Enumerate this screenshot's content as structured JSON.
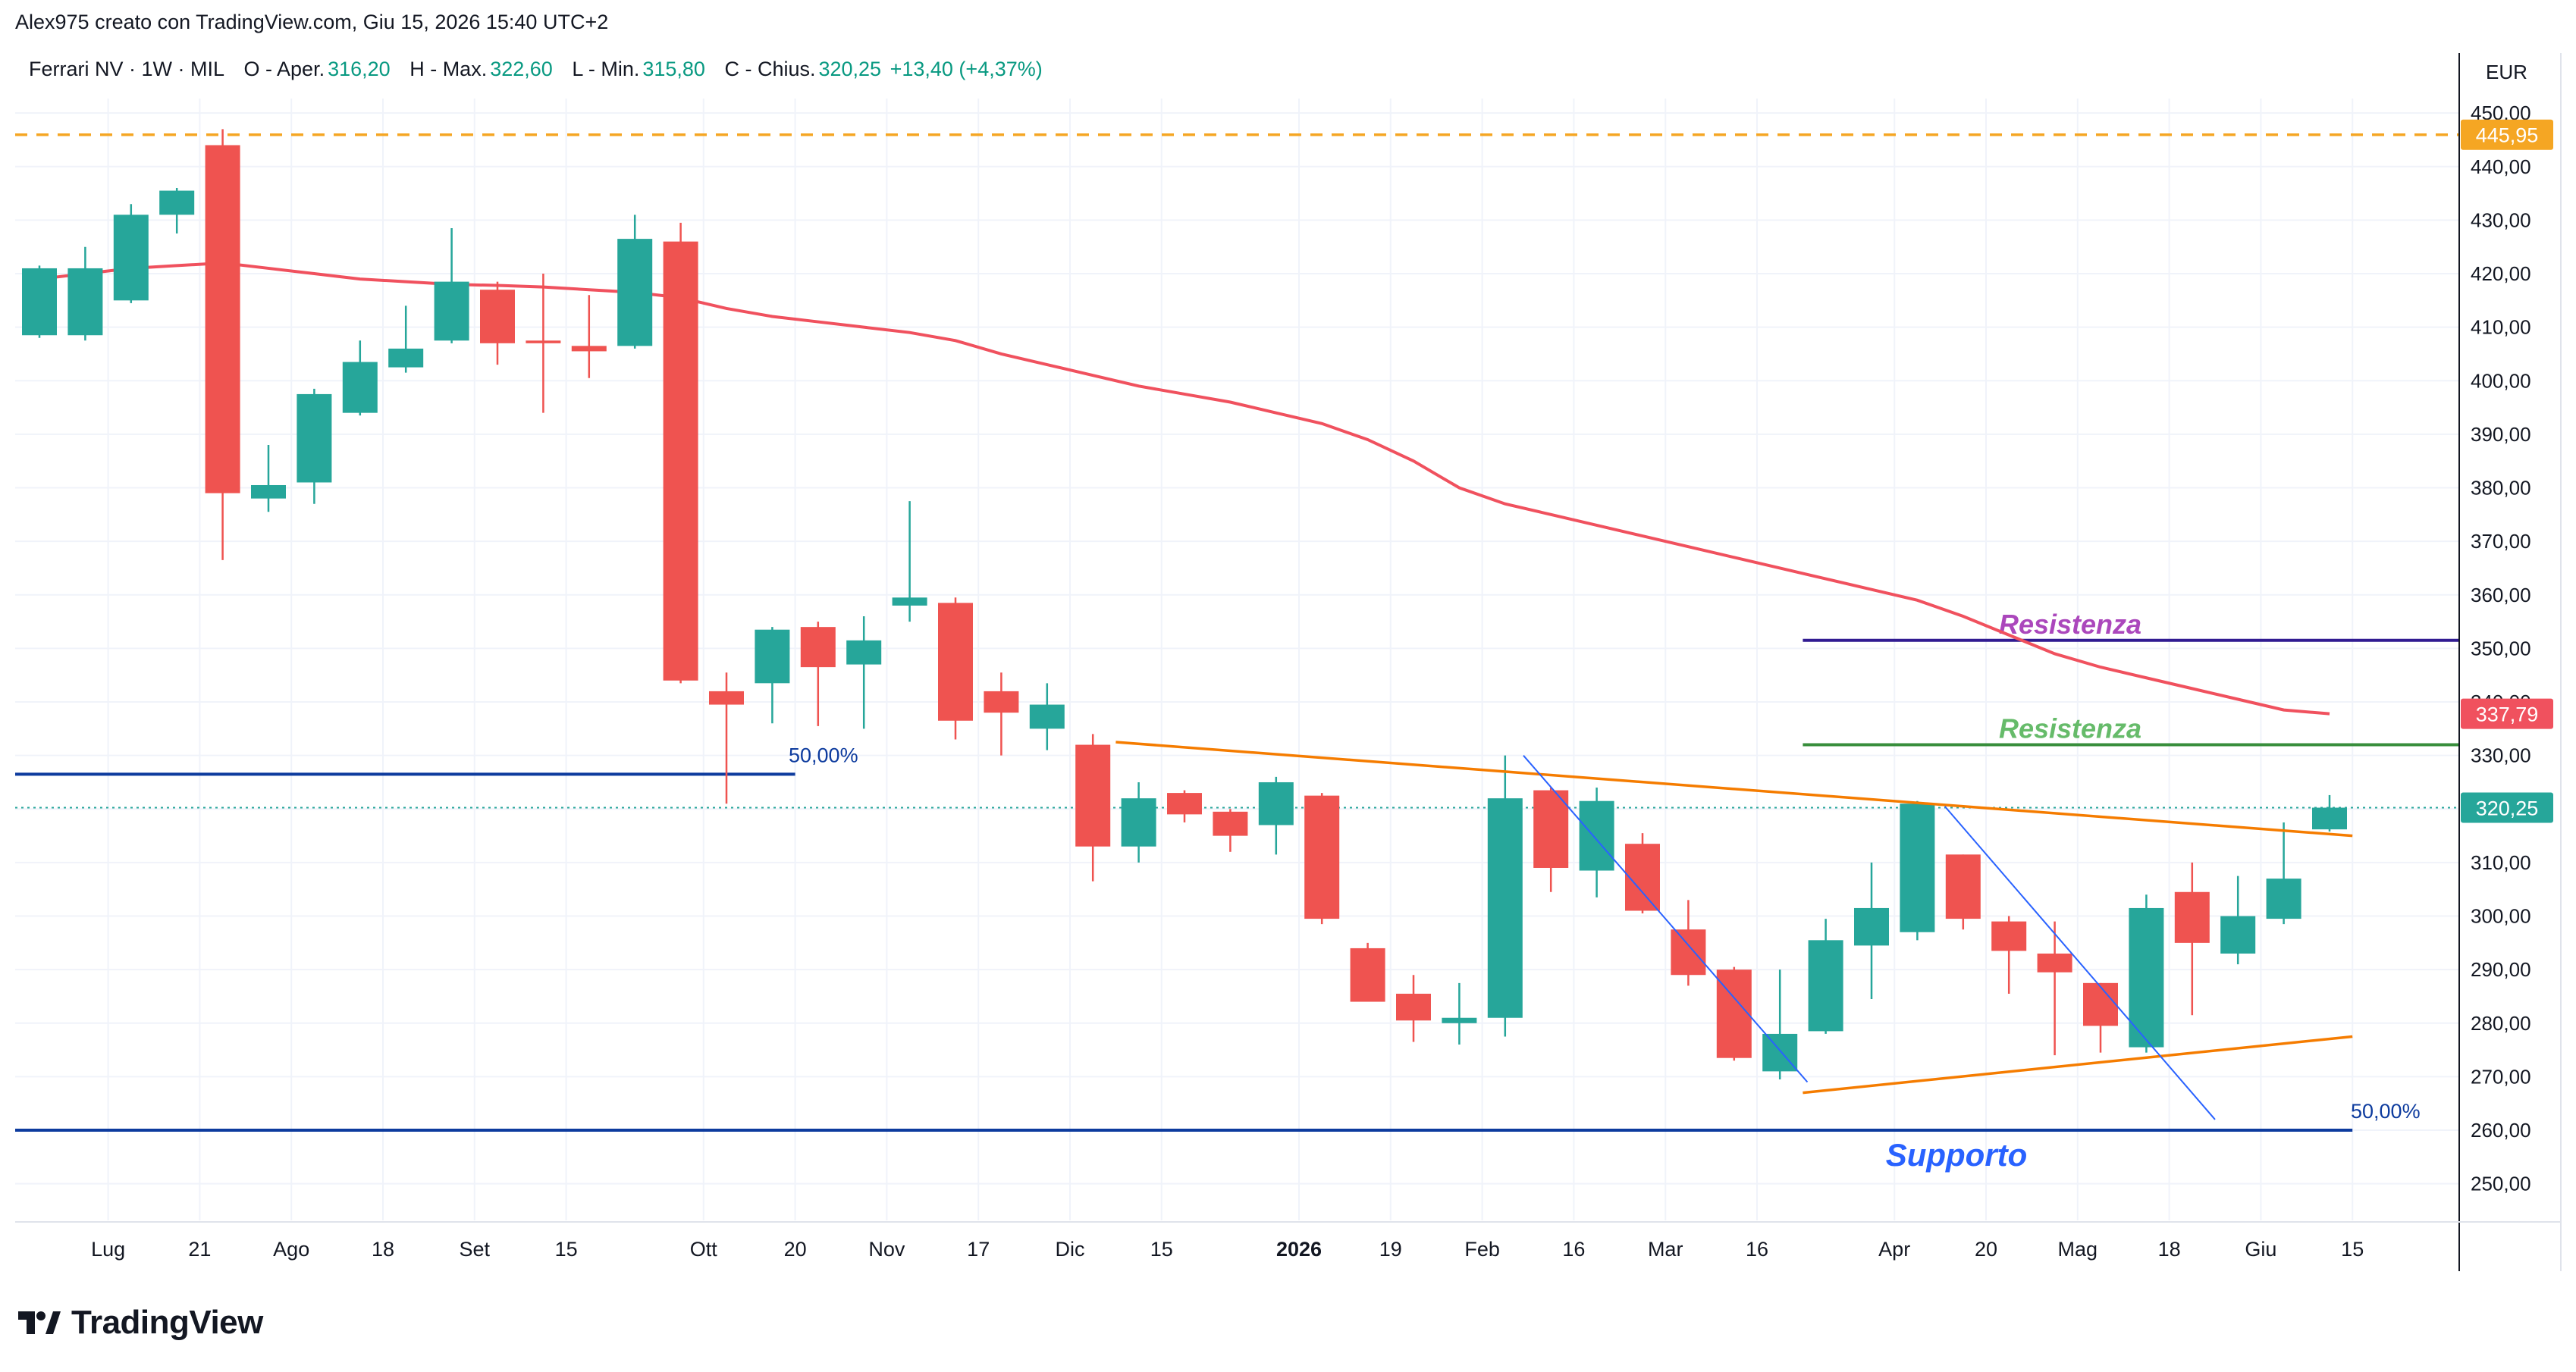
{
  "header": {
    "author_line": "Alex975 creato con TradingView.com, Giu 15, 2026 15:40 UTC+2"
  },
  "legend": {
    "symbol": "Ferrari NV · 1W · MIL",
    "open_label": "O - Aper.",
    "open_value": "316,20",
    "high_label": "H - Max.",
    "high_value": "322,60",
    "low_label": "L - Min.",
    "low_value": "315,80",
    "close_label": "C - Chius.",
    "close_value": "320,25",
    "change": "+13,40 (+4,37%)"
  },
  "currency": "EUR",
  "footer": {
    "brand": "TradingView"
  },
  "colors": {
    "up": "#26a69a",
    "down": "#ef5350",
    "ma": "#f0515e",
    "orange": "#f57c00",
    "blue_line": "#0d3b9e",
    "trend_blue": "#2962ff",
    "resistance_purple": "#311b92",
    "resistance_green": "#388e3c",
    "dashed": "#f5a623",
    "last_price": "#26a69a",
    "ma_label": "#f0515e"
  },
  "chart_data": {
    "type": "candlestick",
    "ylim": [
      245,
      452
    ],
    "y_ticks": [
      "450,00",
      "440,00",
      "430,00",
      "420,00",
      "410,00",
      "400,00",
      "390,00",
      "380,00",
      "370,00",
      "360,00",
      "350,00",
      "340,00",
      "330,00",
      "320,00",
      "310,00",
      "300,00",
      "290,00",
      "280,00",
      "270,00",
      "260,00",
      "250,00"
    ],
    "y_tick_values": [
      450,
      440,
      430,
      420,
      410,
      400,
      390,
      380,
      370,
      360,
      350,
      340,
      330,
      320,
      310,
      300,
      290,
      280,
      270,
      260,
      250
    ],
    "x_labels": [
      {
        "label": "Lug",
        "i": 1.5
      },
      {
        "label": "21",
        "i": 3.5
      },
      {
        "label": "Ago",
        "i": 5.5
      },
      {
        "label": "18",
        "i": 7.5
      },
      {
        "label": "Set",
        "i": 9.5
      },
      {
        "label": "15",
        "i": 11.5
      },
      {
        "label": "Ott",
        "i": 14.5
      },
      {
        "label": "20",
        "i": 16.5
      },
      {
        "label": "Nov",
        "i": 18.5
      },
      {
        "label": "17",
        "i": 20.5
      },
      {
        "label": "Dic",
        "i": 22.5
      },
      {
        "label": "15",
        "i": 24.5
      },
      {
        "label": "2026",
        "i": 27.5,
        "bold": true
      },
      {
        "label": "19",
        "i": 29.5
      },
      {
        "label": "Feb",
        "i": 31.5
      },
      {
        "label": "16",
        "i": 33.5
      },
      {
        "label": "Mar",
        "i": 35.5
      },
      {
        "label": "16",
        "i": 37.5
      },
      {
        "label": "Apr",
        "i": 40.5
      },
      {
        "label": "20",
        "i": 42.5
      },
      {
        "label": "Mag",
        "i": 44.5
      },
      {
        "label": "18",
        "i": 46.5
      },
      {
        "label": "Giu",
        "i": 48.5
      },
      {
        "label": "15",
        "i": 50.5
      }
    ],
    "candles": [
      {
        "o": 408.5,
        "h": 421.5,
        "l": 408.0,
        "c": 421.0
      },
      {
        "o": 408.5,
        "h": 425.0,
        "l": 407.5,
        "c": 421.0
      },
      {
        "o": 415.0,
        "h": 433.0,
        "l": 414.5,
        "c": 431.0
      },
      {
        "o": 431.0,
        "h": 436.0,
        "l": 427.5,
        "c": 435.5
      },
      {
        "o": 444.0,
        "h": 447.0,
        "l": 366.5,
        "c": 379.0
      },
      {
        "o": 378.0,
        "h": 388.0,
        "l": 375.5,
        "c": 380.5
      },
      {
        "o": 381.0,
        "h": 398.5,
        "l": 377.0,
        "c": 397.5
      },
      {
        "o": 394.0,
        "h": 407.5,
        "l": 393.5,
        "c": 403.5
      },
      {
        "o": 402.5,
        "h": 414.0,
        "l": 401.5,
        "c": 406.0
      },
      {
        "o": 407.5,
        "h": 428.5,
        "l": 407.0,
        "c": 418.5
      },
      {
        "o": 417.0,
        "h": 418.5,
        "l": 403.0,
        "c": 407.0
      },
      {
        "o": 407.5,
        "h": 420.0,
        "l": 394.0,
        "c": 407.0
      },
      {
        "o": 406.5,
        "h": 416.0,
        "l": 400.5,
        "c": 405.5
      },
      {
        "o": 406.5,
        "h": 431.0,
        "l": 406.0,
        "c": 426.5
      },
      {
        "o": 426.0,
        "h": 429.5,
        "l": 343.5,
        "c": 344.0
      },
      {
        "o": 342.0,
        "h": 345.5,
        "l": 321.0,
        "c": 339.5
      },
      {
        "o": 343.5,
        "h": 354.0,
        "l": 336.0,
        "c": 353.5
      },
      {
        "o": 354.0,
        "h": 355.0,
        "l": 335.5,
        "c": 346.5
      },
      {
        "o": 347.0,
        "h": 356.0,
        "l": 335.0,
        "c": 351.5
      },
      {
        "o": 358.0,
        "h": 377.5,
        "l": 355.0,
        "c": 359.5
      },
      {
        "o": 358.5,
        "h": 359.5,
        "l": 333.0,
        "c": 336.5
      },
      {
        "o": 342.0,
        "h": 345.5,
        "l": 330.0,
        "c": 338.0
      },
      {
        "o": 335.0,
        "h": 343.5,
        "l": 331.0,
        "c": 339.5
      },
      {
        "o": 332.0,
        "h": 334.0,
        "l": 306.5,
        "c": 313.0
      },
      {
        "o": 313.0,
        "h": 325.0,
        "l": 310.0,
        "c": 322.0
      },
      {
        "o": 323.0,
        "h": 323.5,
        "l": 317.5,
        "c": 319.0
      },
      {
        "o": 319.5,
        "h": 320.0,
        "l": 312.0,
        "c": 315.0
      },
      {
        "o": 317.0,
        "h": 326.0,
        "l": 311.5,
        "c": 325.0
      },
      {
        "o": 322.5,
        "h": 323.0,
        "l": 298.5,
        "c": 299.5
      },
      {
        "o": 294.0,
        "h": 295.0,
        "l": 284.0,
        "c": 284.0
      },
      {
        "o": 285.5,
        "h": 289.0,
        "l": 276.5,
        "c": 280.5
      },
      {
        "o": 280.0,
        "h": 287.5,
        "l": 276.0,
        "c": 281.0
      },
      {
        "o": 281.0,
        "h": 330.0,
        "l": 277.5,
        "c": 322.0
      },
      {
        "o": 323.5,
        "h": 324.0,
        "l": 304.5,
        "c": 309.0
      },
      {
        "o": 308.5,
        "h": 324.0,
        "l": 303.5,
        "c": 321.5
      },
      {
        "o": 313.5,
        "h": 315.5,
        "l": 300.5,
        "c": 301.0
      },
      {
        "o": 297.5,
        "h": 303.0,
        "l": 287.0,
        "c": 289.0
      },
      {
        "o": 290.0,
        "h": 290.5,
        "l": 273.0,
        "c": 273.5
      },
      {
        "o": 271.0,
        "h": 290.0,
        "l": 269.5,
        "c": 278.0
      },
      {
        "o": 278.5,
        "h": 299.5,
        "l": 278.0,
        "c": 295.5
      },
      {
        "o": 294.5,
        "h": 310.0,
        "l": 284.5,
        "c": 301.5
      },
      {
        "o": 297.0,
        "h": 321.5,
        "l": 295.5,
        "c": 321.0
      },
      {
        "o": 311.5,
        "h": 311.5,
        "l": 297.5,
        "c": 299.5
      },
      {
        "o": 299.0,
        "h": 300.0,
        "l": 285.5,
        "c": 293.5
      },
      {
        "o": 293.0,
        "h": 299.0,
        "l": 274.0,
        "c": 289.5
      },
      {
        "o": 287.5,
        "h": 287.5,
        "l": 274.5,
        "c": 279.5
      },
      {
        "o": 275.5,
        "h": 304.0,
        "l": 274.5,
        "c": 301.5
      },
      {
        "o": 304.5,
        "h": 310.0,
        "l": 281.5,
        "c": 295.0
      },
      {
        "o": 293.0,
        "h": 307.5,
        "l": 291.0,
        "c": 300.0
      },
      {
        "o": 299.5,
        "h": 317.5,
        "l": 298.5,
        "c": 307.0
      },
      {
        "o": 316.2,
        "h": 322.6,
        "l": 315.8,
        "c": 320.25
      }
    ],
    "moving_average": [
      419.0,
      420.0,
      421.0,
      421.5,
      422.0,
      421.0,
      420.0,
      419.0,
      418.5,
      418.0,
      417.8,
      417.5,
      417.0,
      416.5,
      415.5,
      413.5,
      412.0,
      411.0,
      410.0,
      409.0,
      407.5,
      405.0,
      403.0,
      401.0,
      399.0,
      397.5,
      396.0,
      394.0,
      392.0,
      389.0,
      385.0,
      380.0,
      377.0,
      375.0,
      373.0,
      371.0,
      369.0,
      367.0,
      365.0,
      363.0,
      361.0,
      359.0,
      356.0,
      352.5,
      349.0,
      346.5,
      344.5,
      342.5,
      340.5,
      338.5,
      337.79
    ],
    "last_price": {
      "value": 320.25,
      "label": "320,25"
    },
    "ma_value": {
      "value": 337.79,
      "label": "337,79"
    },
    "max_level": {
      "value": 445.95,
      "label": "445,95"
    },
    "hlines": [
      {
        "name": "fib-50-upper",
        "y": 326.5,
        "from": -0.8,
        "to": 16.5,
        "label": "50,00%"
      },
      {
        "name": "fib-50-lower",
        "y": 260.0,
        "from": -0.8,
        "to": 50.5,
        "label": "50,00%"
      },
      {
        "name": "resistance-purple",
        "y": 351.5,
        "from": 38.5,
        "to": 53.0,
        "label": "Resistenza"
      },
      {
        "name": "resistance-green",
        "y": 332.0,
        "from": 38.5,
        "to": 53.0,
        "label": "Resistenza"
      }
    ],
    "support_label": "Supporto",
    "trendlines": [
      {
        "name": "upper-triangle",
        "x1": 23.5,
        "y1": 332.5,
        "x2": 50.5,
        "y2": 315.0,
        "color": "orange"
      },
      {
        "name": "lower-triangle",
        "x1": 38.5,
        "y1": 267.0,
        "x2": 50.5,
        "y2": 277.5,
        "color": "orange"
      },
      {
        "name": "down-trend-1",
        "x1": 32.4,
        "y1": 330.0,
        "x2": 38.6,
        "y2": 269.0,
        "color": "blue"
      },
      {
        "name": "down-trend-2",
        "x1": 41.6,
        "y1": 320.5,
        "x2": 47.5,
        "y2": 262.0,
        "color": "blue"
      }
    ]
  }
}
